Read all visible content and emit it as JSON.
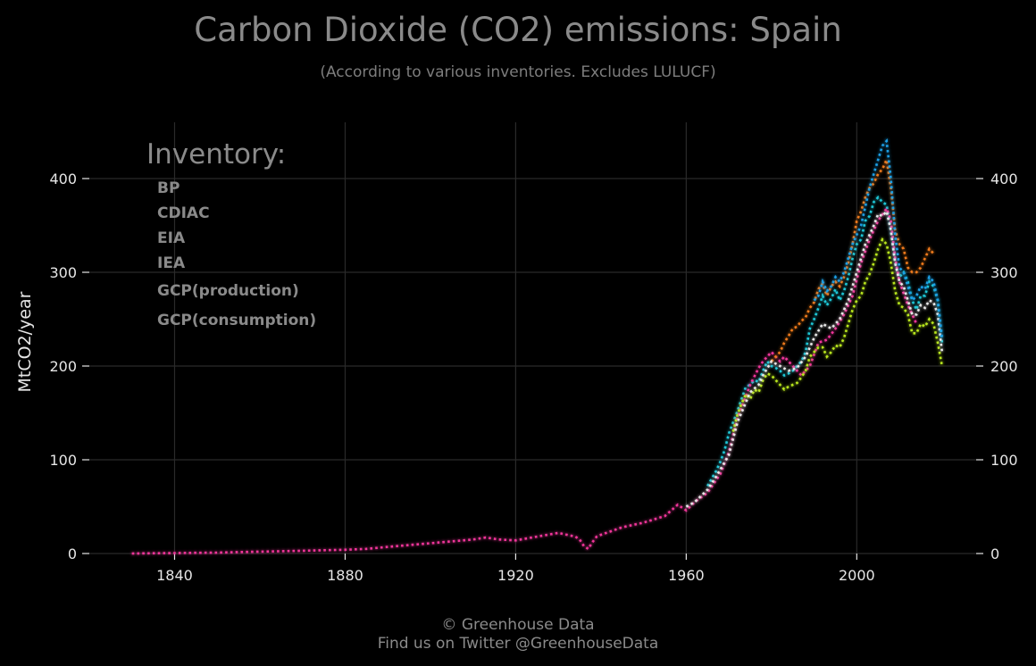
{
  "chart_data": {
    "type": "line",
    "title": "Carbon Dioxide (CO2) emissions: Spain",
    "subtitle": "(According to various inventories. Excludes LULUCF)",
    "ylabel": "MtCO2/year",
    "xlabel": "",
    "xlim": [
      1820,
      2028
    ],
    "ylim": [
      0,
      460
    ],
    "x_ticks": [
      1840,
      1880,
      1920,
      1960,
      2000
    ],
    "y_ticks": [
      0,
      100,
      200,
      300,
      400
    ],
    "grid": true,
    "legend": {
      "title": "Inventory:",
      "placement": "top-left"
    },
    "series": [
      {
        "name": "BP",
        "color": "#1fc8d8",
        "x": [
          1965,
          1966,
          1967,
          1968,
          1969,
          1970,
          1971,
          1972,
          1973,
          1974,
          1975,
          1976,
          1977,
          1978,
          1979,
          1980,
          1981,
          1982,
          1983,
          1984,
          1985,
          1986,
          1987,
          1988,
          1989,
          1990,
          1991,
          1992,
          1993,
          1994,
          1995,
          1996,
          1997,
          1998,
          1999,
          2000,
          2001,
          2002,
          2003,
          2004,
          2005,
          2006,
          2007,
          2008,
          2009,
          2010,
          2011,
          2012,
          2013,
          2014,
          2015,
          2016,
          2017,
          2018,
          2019,
          2020
        ],
        "y": [
          72,
          80,
          88,
          98,
          110,
          128,
          140,
          152,
          165,
          178,
          180,
          185,
          183,
          195,
          205,
          200,
          198,
          195,
          190,
          192,
          195,
          200,
          205,
          215,
          240,
          250,
          262,
          275,
          265,
          272,
          282,
          270,
          280,
          295,
          315,
          330,
          335,
          355,
          360,
          375,
          380,
          375,
          372,
          345,
          310,
          295,
          300,
          290,
          270,
          260,
          275,
          275,
          290,
          285,
          270,
          225
        ]
      },
      {
        "name": "CDIAC",
        "color": "#f0369a",
        "x": [
          1830,
          1835,
          1840,
          1845,
          1850,
          1855,
          1860,
          1865,
          1870,
          1875,
          1880,
          1885,
          1890,
          1895,
          1900,
          1905,
          1910,
          1913,
          1916,
          1920,
          1925,
          1930,
          1932,
          1934,
          1935,
          1936,
          1937,
          1938,
          1939,
          1940,
          1945,
          1950,
          1955,
          1958,
          1960,
          1962,
          1965,
          1968,
          1970,
          1972,
          1975,
          1977,
          1978,
          1980,
          1982,
          1983,
          1985,
          1987,
          1989,
          1991,
          1993,
          1995,
          1997,
          1999,
          2001,
          2003,
          2005,
          2007,
          2008,
          2009,
          2010,
          2012,
          2014
        ],
        "y": [
          0,
          0.3,
          0.5,
          0.8,
          1,
          1.5,
          2,
          2.5,
          3,
          3.5,
          4,
          5,
          7,
          9,
          11,
          13,
          15,
          17,
          15,
          14,
          18,
          22,
          20,
          18,
          15,
          8,
          5,
          12,
          18,
          20,
          28,
          33,
          40,
          52,
          46,
          55,
          65,
          85,
          108,
          145,
          180,
          198,
          205,
          215,
          205,
          210,
          200,
          190,
          200,
          225,
          228,
          240,
          255,
          275,
          310,
          335,
          355,
          368,
          355,
          315,
          290,
          265,
          245
        ]
      },
      {
        "name": "EIA",
        "color": "#f07a1a",
        "x": [
          1980,
          1981,
          1982,
          1983,
          1984,
          1985,
          1986,
          1987,
          1988,
          1989,
          1990,
          1991,
          1992,
          1993,
          1994,
          1995,
          1996,
          1997,
          1998,
          1999,
          2000,
          2001,
          2002,
          2003,
          2004,
          2005,
          2006,
          2007,
          2008,
          2009,
          2010,
          2011,
          2012,
          2013,
          2014,
          2015,
          2016,
          2017,
          2018
        ],
        "y": [
          205,
          210,
          215,
          225,
          232,
          240,
          242,
          248,
          252,
          262,
          268,
          282,
          288,
          275,
          285,
          290,
          285,
          295,
          310,
          330,
          355,
          365,
          380,
          390,
          395,
          405,
          410,
          420,
          390,
          345,
          330,
          325,
          305,
          300,
          300,
          305,
          315,
          325,
          320
        ]
      },
      {
        "name": "IEA",
        "color": "#b8e61e",
        "x": [
          1971,
          1972,
          1973,
          1974,
          1975,
          1976,
          1977,
          1978,
          1979,
          1980,
          1981,
          1982,
          1983,
          1984,
          1985,
          1986,
          1987,
          1988,
          1989,
          1990,
          1991,
          1992,
          1993,
          1994,
          1995,
          1996,
          1997,
          1998,
          1999,
          2000,
          2001,
          2002,
          2003,
          2004,
          2005,
          2006,
          2007,
          2008,
          2009,
          2010,
          2011,
          2012,
          2013,
          2014,
          2015,
          2016,
          2017,
          2018,
          2019,
          2020
        ],
        "y": [
          130,
          148,
          160,
          170,
          165,
          175,
          172,
          185,
          192,
          190,
          185,
          180,
          175,
          178,
          180,
          182,
          188,
          195,
          210,
          215,
          220,
          220,
          210,
          215,
          222,
          220,
          230,
          245,
          260,
          270,
          275,
          290,
          298,
          310,
          325,
          335,
          330,
          310,
          280,
          265,
          262,
          255,
          235,
          235,
          245,
          242,
          250,
          245,
          225,
          200
        ]
      },
      {
        "name": "GCP(production)",
        "color": "#e8e8e8",
        "x": [
          1960,
          1962,
          1965,
          1967,
          1970,
          1972,
          1975,
          1977,
          1978,
          1980,
          1982,
          1984,
          1986,
          1988,
          1990,
          1992,
          1994,
          1996,
          1998,
          2000,
          2002,
          2004,
          2005,
          2006,
          2007,
          2008,
          2009,
          2010,
          2011,
          2012,
          2013,
          2014,
          2015,
          2016,
          2017,
          2018,
          2019,
          2020
        ],
        "y": [
          50,
          55,
          68,
          82,
          105,
          140,
          172,
          180,
          190,
          205,
          200,
          195,
          198,
          210,
          230,
          245,
          240,
          250,
          270,
          300,
          330,
          350,
          362,
          360,
          365,
          345,
          310,
          290,
          285,
          270,
          255,
          255,
          265,
          262,
          270,
          268,
          255,
          215
        ]
      },
      {
        "name": "GCP(consumption)",
        "color": "#1a9fe6",
        "x": [
          1990,
          1991,
          1992,
          1993,
          1994,
          1995,
          1996,
          1997,
          1998,
          1999,
          2000,
          2001,
          2002,
          2003,
          2004,
          2005,
          2006,
          2007,
          2008,
          2009,
          2010,
          2011,
          2012,
          2013,
          2014,
          2015,
          2016,
          2017,
          2018,
          2019,
          2020
        ],
        "y": [
          270,
          275,
          290,
          280,
          285,
          295,
          290,
          300,
          315,
          330,
          340,
          350,
          370,
          390,
          405,
          420,
          435,
          440,
          400,
          340,
          305,
          300,
          285,
          270,
          275,
          285,
          282,
          295,
          290,
          270,
          230
        ]
      }
    ]
  },
  "footer": {
    "line1": "© Greenhouse Data",
    "line2": "Find us on Twitter @GreenhouseData"
  }
}
